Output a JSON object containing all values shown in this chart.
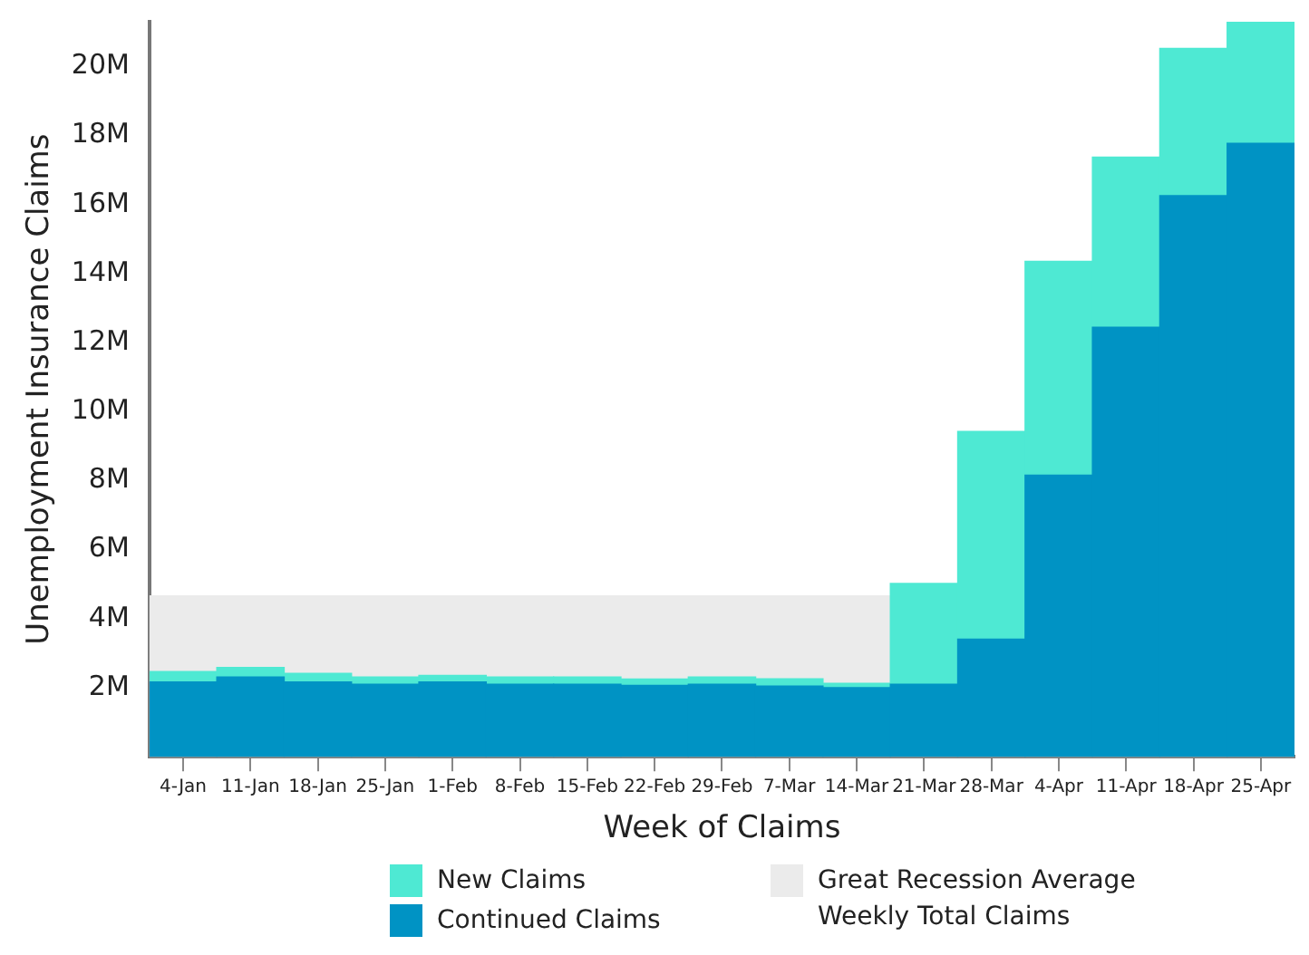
{
  "chart_data": {
    "type": "bar",
    "stacked": true,
    "xlabel": "Week of Claims",
    "ylabel": "Unemployment Insurance Claims",
    "categories": [
      "4-Jan",
      "11-Jan",
      "18-Jan",
      "25-Jan",
      "1-Feb",
      "8-Feb",
      "15-Feb",
      "22-Feb",
      "29-Feb",
      "7-Mar",
      "14-Mar",
      "21-Mar",
      "28-Mar",
      "4-Apr",
      "11-Apr",
      "18-Apr",
      "25-Apr"
    ],
    "series": [
      {
        "name": "Continued Claims",
        "color": "#0093c4",
        "values": [
          2.17,
          2.31,
          2.17,
          2.1,
          2.17,
          2.1,
          2.1,
          2.07,
          2.1,
          2.05,
          2.0,
          2.1,
          3.41,
          8.16,
          12.45,
          16.26,
          17.78
        ]
      },
      {
        "name": "New Claims",
        "color": "#4ee9d3",
        "values": [
          0.3,
          0.28,
          0.25,
          0.21,
          0.19,
          0.21,
          0.21,
          0.18,
          0.21,
          0.21,
          0.13,
          2.92,
          6.02,
          6.2,
          4.93,
          4.27,
          3.5
        ]
      }
    ],
    "ylim": [
      0,
      21.3
    ],
    "yticks": [
      {
        "value": 2,
        "label": "2M"
      },
      {
        "value": 4,
        "label": "4M"
      },
      {
        "value": 6,
        "label": "6M"
      },
      {
        "value": 8,
        "label": "8M"
      },
      {
        "value": 10,
        "label": "10M"
      },
      {
        "value": 12,
        "label": "12M"
      },
      {
        "value": 14,
        "label": "14M"
      },
      {
        "value": 16,
        "label": "16M"
      },
      {
        "value": 18,
        "label": "18M"
      },
      {
        "value": 20,
        "label": "20M"
      }
    ],
    "bands": [
      {
        "axis": "y",
        "from": 0,
        "to": 4.68,
        "label": "Great Recession Average Weekly Total Claims",
        "color": "#ebebeb"
      }
    ],
    "grid": false,
    "legend": "bottom"
  }
}
